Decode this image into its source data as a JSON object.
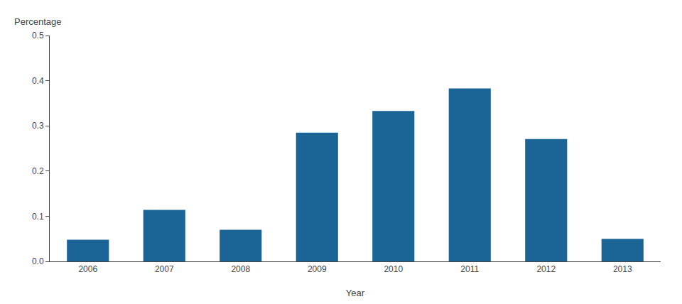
{
  "chart_data": {
    "type": "bar",
    "categories": [
      "2006",
      "2007",
      "2008",
      "2009",
      "2010",
      "2011",
      "2012",
      "2013"
    ],
    "values": [
      0.048,
      0.114,
      0.07,
      0.285,
      0.333,
      0.383,
      0.271,
      0.05
    ],
    "color": "#1a6496",
    "xlabel": "Year",
    "ylabel": "Percentage",
    "ylim": [
      0,
      0.5
    ],
    "yticks": [
      {
        "value": 0.0,
        "label": "0.0"
      },
      0.1,
      0.2,
      0.3,
      0.4,
      0.5
    ],
    "grid": false
  }
}
